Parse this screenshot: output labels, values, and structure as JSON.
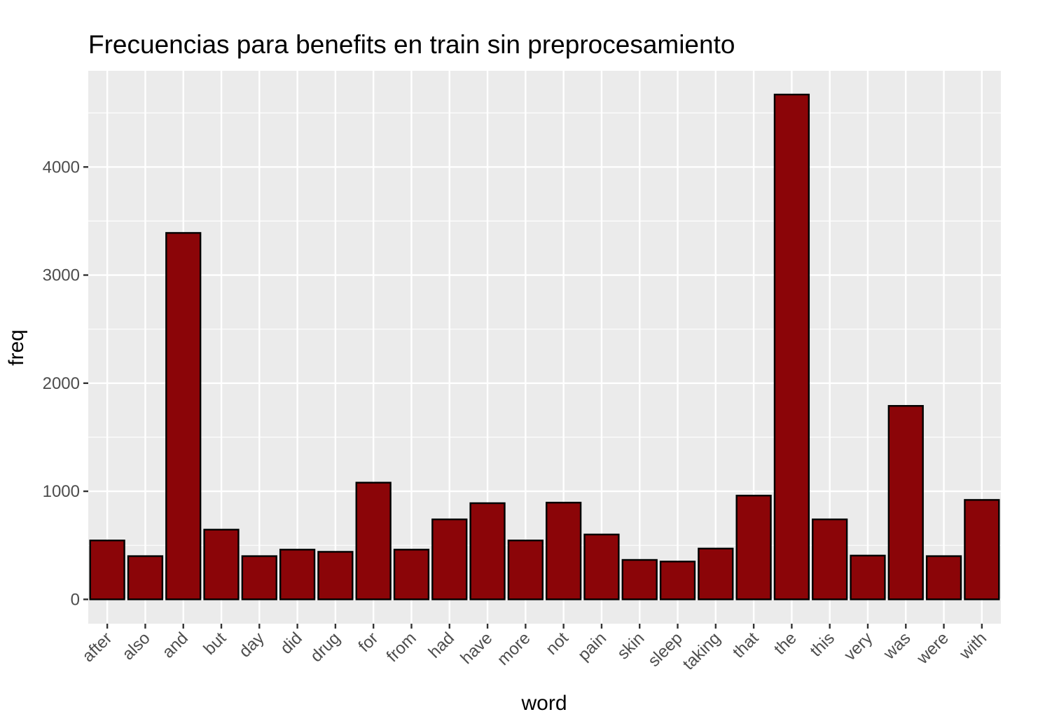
{
  "chart_data": {
    "type": "bar",
    "title": "Frecuencias para benefits en train sin preprocesamiento",
    "xlabel": "word",
    "ylabel": "freq",
    "categories": [
      "after",
      "also",
      "and",
      "but",
      "day",
      "did",
      "drug",
      "for",
      "from",
      "had",
      "have",
      "more",
      "not",
      "pain",
      "skin",
      "sleep",
      "taking",
      "that",
      "the",
      "this",
      "very",
      "was",
      "were",
      "with"
    ],
    "values": [
      545,
      400,
      3390,
      645,
      400,
      460,
      440,
      1080,
      460,
      740,
      890,
      545,
      895,
      600,
      365,
      350,
      470,
      960,
      4670,
      740,
      405,
      1790,
      400,
      920
    ],
    "yticks": [
      0,
      1000,
      2000,
      3000,
      4000
    ],
    "ylim": [
      -225,
      4890
    ],
    "grid": true,
    "legend": "none",
    "colors": {
      "bar_fill": "#8b0508",
      "bar_stroke": "#000000",
      "panel_bg": "#ebebeb",
      "grid": "#ffffff"
    }
  }
}
